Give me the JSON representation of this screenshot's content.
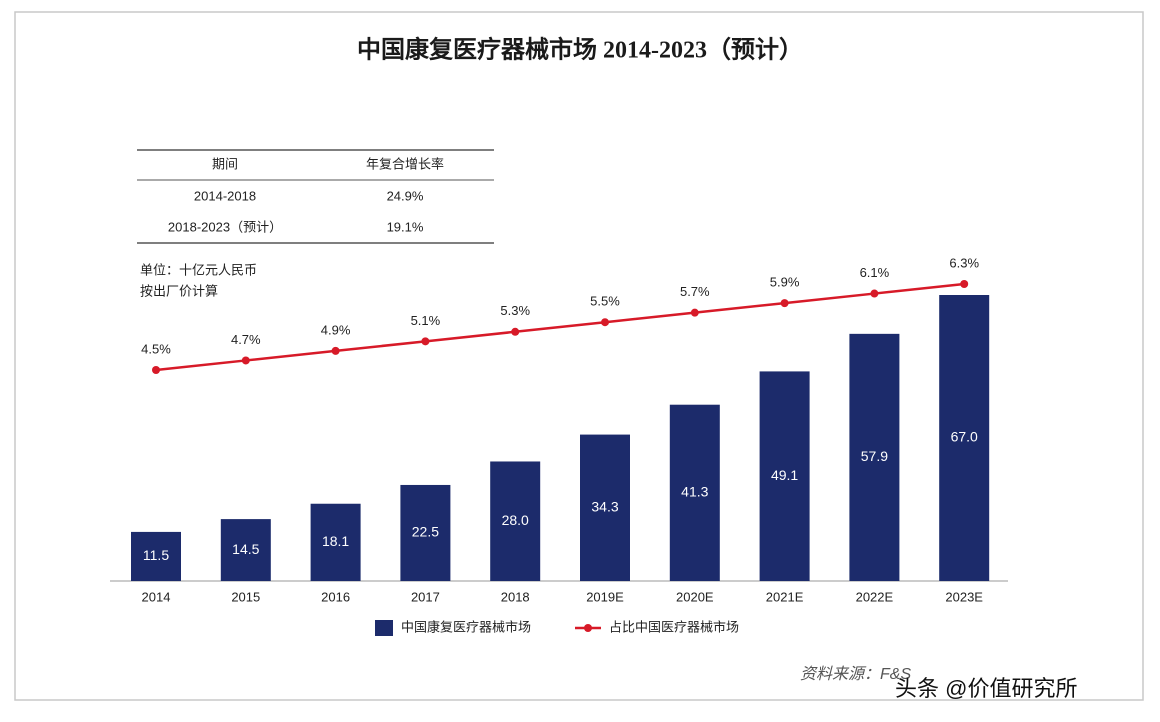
{
  "chart_data": {
    "type": "bar",
    "title": "中国康复医疗器械市场 2014-2023（预计）",
    "categories": [
      "2014",
      "2015",
      "2016",
      "2017",
      "2018",
      "2019E",
      "2020E",
      "2021E",
      "2022E",
      "2023E"
    ],
    "series": [
      {
        "name": "中国康复医疗器械市场",
        "type": "bar",
        "color": "#1c2b6b",
        "values": [
          11.5,
          14.5,
          18.1,
          22.5,
          28.0,
          34.3,
          41.3,
          49.1,
          57.9,
          67.0
        ],
        "value_labels": [
          "11.5",
          "14.5",
          "18.1",
          "22.5",
          "28.0",
          "34.3",
          "41.3",
          "49.1",
          "57.9",
          "67.0"
        ]
      },
      {
        "name": "占比中国医疗器械市场",
        "type": "line",
        "color": "#d71a28",
        "values": [
          4.5,
          4.7,
          4.9,
          5.1,
          5.3,
          5.5,
          5.7,
          5.9,
          6.1,
          6.3
        ],
        "value_labels": [
          "4.5%",
          "4.7%",
          "4.9%",
          "5.1%",
          "5.3%",
          "5.5%",
          "5.7%",
          "5.9%",
          "6.1%",
          "6.3%"
        ]
      }
    ]
  },
  "table": {
    "header": [
      "期间",
      "年复合增长率"
    ],
    "rows": [
      [
        "2014-2018",
        "24.9%"
      ],
      [
        "2018-2023（预计）",
        "19.1%"
      ]
    ]
  },
  "notes": [
    "单位：十亿元人民币",
    "按出厂价计算"
  ],
  "source": "资料来源：F&S",
  "watermark": "头条 @价值研究所"
}
